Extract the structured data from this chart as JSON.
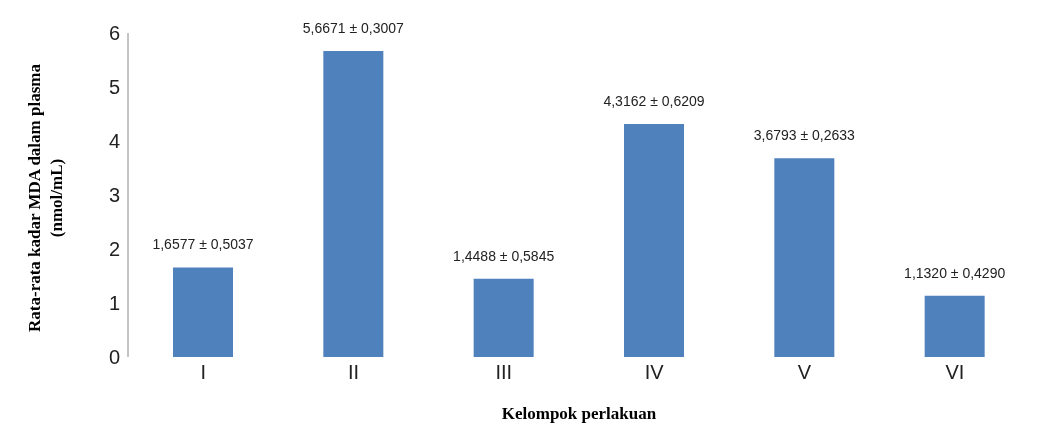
{
  "chart_data": {
    "type": "bar",
    "xlabel": "Kelompok perlakuan",
    "ylabel": "Rata-rata kadar MDA dalam plasma (nmol/mL)",
    "categories": [
      "I",
      "II",
      "III",
      "IV",
      "V",
      "VI"
    ],
    "values": [
      1.6577,
      5.6671,
      1.4488,
      4.3162,
      3.6793,
      1.132
    ],
    "value_labels": [
      "1,6577 ± 0,5037",
      "5,6671 ± 0,3007",
      "1,4488 ± 0,5845",
      "4,3162 ± 0,6209",
      "3,6793 ± 0,2633",
      "1,1320 ± 0,4290"
    ],
    "color": "#4f81bd",
    "ylim": [
      0,
      6
    ],
    "yticks": [
      0,
      1,
      2,
      3,
      4,
      5,
      6
    ],
    "grid": false,
    "legend": false
  }
}
